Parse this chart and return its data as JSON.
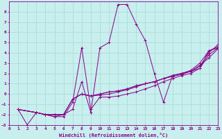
{
  "xlabel": "Windchill (Refroidissement éolien,°C)",
  "background_color": "#c8eeee",
  "line_color": "#880088",
  "grid_color": "#aadddd",
  "xmin": 0,
  "xmax": 23,
  "ymin": -3,
  "ymax": 9,
  "yticks": [
    -3,
    -2,
    -1,
    0,
    1,
    2,
    3,
    4,
    5,
    6,
    7,
    8
  ],
  "xticks": [
    0,
    1,
    2,
    3,
    4,
    5,
    6,
    7,
    8,
    9,
    10,
    11,
    12,
    13,
    14,
    15,
    16,
    17,
    18,
    19,
    20,
    21,
    22,
    23
  ],
  "lines": [
    {
      "x": [
        1,
        2,
        3,
        4,
        5,
        6,
        7,
        8,
        9,
        10,
        11,
        12,
        13,
        14,
        15,
        16,
        17,
        18,
        19,
        20,
        21,
        22,
        23
      ],
      "y": [
        -1.5,
        -3.0,
        -1.8,
        -2.0,
        -2.2,
        -2.0,
        -1.5,
        1.2,
        -1.8,
        4.5,
        5.0,
        8.7,
        8.7,
        6.8,
        5.2,
        2.0,
        -0.8,
        1.8,
        2.0,
        2.2,
        2.5,
        4.2,
        4.5
      ]
    },
    {
      "x": [
        1,
        3,
        4,
        5,
        6,
        7,
        8,
        9,
        10,
        11,
        12,
        13,
        14,
        15,
        16,
        17,
        18,
        19,
        20,
        21,
        22,
        23
      ],
      "y": [
        -1.5,
        -1.8,
        -2.0,
        -2.2,
        -2.2,
        -0.8,
        4.5,
        -1.5,
        -0.3,
        -0.3,
        -0.2,
        -0.0,
        0.2,
        0.5,
        0.8,
        1.2,
        1.5,
        1.8,
        2.0,
        2.5,
        3.8,
        4.5
      ]
    },
    {
      "x": [
        1,
        3,
        4,
        5,
        6,
        7,
        8,
        9,
        10,
        11,
        12,
        13,
        14,
        15,
        16,
        17,
        18,
        19,
        20,
        21,
        22,
        23
      ],
      "y": [
        -1.5,
        -1.8,
        -2.0,
        -2.0,
        -2.0,
        -0.5,
        0.0,
        -0.2,
        -0.1,
        -0.0,
        0.2,
        0.4,
        0.7,
        1.0,
        1.2,
        1.5,
        1.8,
        2.0,
        2.2,
        2.7,
        4.0,
        4.8
      ]
    },
    {
      "x": [
        1,
        3,
        4,
        5,
        6,
        7,
        8,
        9,
        10,
        11,
        12,
        13,
        14,
        15,
        16,
        17,
        18,
        19,
        20,
        21,
        22,
        23
      ],
      "y": [
        -1.5,
        -1.8,
        -2.0,
        -2.0,
        -2.0,
        -0.5,
        0.0,
        -0.2,
        -0.0,
        0.2,
        0.3,
        0.5,
        0.8,
        1.0,
        1.2,
        1.5,
        1.8,
        2.0,
        2.3,
        3.0,
        4.2,
        4.6
      ]
    },
    {
      "x": [
        1,
        3,
        4,
        5,
        6,
        7,
        8,
        9,
        10,
        11,
        12,
        13,
        14,
        15,
        16,
        17,
        18,
        19,
        20,
        21,
        22,
        23
      ],
      "y": [
        -1.5,
        -1.8,
        -2.0,
        -2.0,
        -2.0,
        -0.5,
        0.0,
        -0.2,
        0.0,
        0.2,
        0.3,
        0.5,
        0.8,
        1.0,
        1.2,
        1.5,
        1.7,
        1.9,
        2.2,
        2.8,
        3.5,
        4.4
      ]
    }
  ]
}
